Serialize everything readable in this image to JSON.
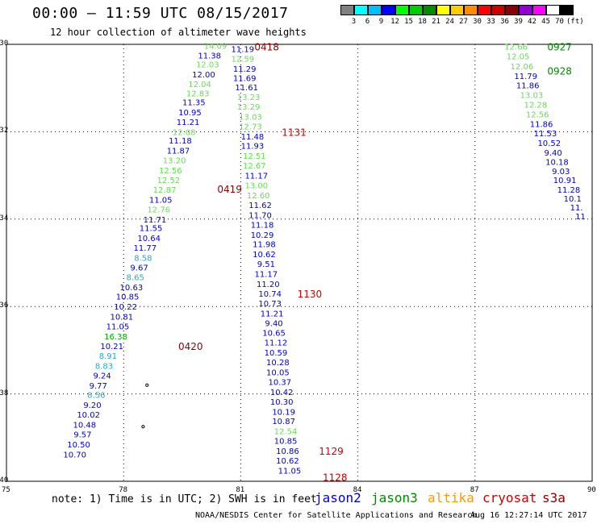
{
  "header": {
    "title": "00:00 – 11:59 UTC 08/15/2017",
    "subtitle": "12 hour collection of altimeter wave heights"
  },
  "legend": {
    "colors": [
      "#808080",
      "#00ffff",
      "#00bfff",
      "#0000ff",
      "#00ff00",
      "#00cd00",
      "#008b00",
      "#ffff00",
      "#ffcc00",
      "#ff8c00",
      "#ff0000",
      "#cd0000",
      "#8b0000",
      "#9400d3",
      "#ff00ff",
      "#ffffff",
      "#000000"
    ],
    "labels": [
      "3",
      "6",
      "9",
      "12",
      "15",
      "18",
      "21",
      "24",
      "27",
      "30",
      "33",
      "36",
      "39",
      "42",
      "45",
      "70",
      "(ft)"
    ]
  },
  "axes": {
    "y_ticks": [
      "-30",
      "-32",
      "-34",
      "-36",
      "-38",
      "-40"
    ],
    "x_ticks": [
      "75",
      "78",
      "81",
      "84",
      "87",
      "90"
    ]
  },
  "note": "note: 1) Time is in UTC; 2) SWH is in feet",
  "satellites": [
    {
      "name": "jason2",
      "color": "#0000cc"
    },
    {
      "name": "jason3",
      "color": "#008b00"
    },
    {
      "name": "altika",
      "color": "#ff9900"
    },
    {
      "name": "cryosat",
      "color": "#cc0000"
    },
    {
      "name": "s3a",
      "color": "#8b0000"
    }
  ],
  "credit": "NOAA/NESDIS Center for Satellite Applications and Research",
  "stamp": "Aug 16 12:27:14 UTC 2017",
  "chart_data": {
    "type": "scatter",
    "xlim": [
      75,
      90
    ],
    "ylim": [
      -40,
      -30
    ],
    "grid": true,
    "time_labels": [
      {
        "text": "0418",
        "lon": 81.35,
        "lat": -30.05,
        "color": "#8b0000"
      },
      {
        "text": "0419",
        "lon": 80.4,
        "lat": -33.3,
        "color": "#8b0000"
      },
      {
        "text": "0420",
        "lon": 79.4,
        "lat": -36.9,
        "color": "#8b0000"
      },
      {
        "text": "1131",
        "lon": 82.05,
        "lat": -32.0,
        "color": "#cc0000"
      },
      {
        "text": "1130",
        "lon": 82.45,
        "lat": -35.7,
        "color": "#cc0000"
      },
      {
        "text": "1129",
        "lon": 83.0,
        "lat": -39.3,
        "color": "#cc0000"
      },
      {
        "text": "1128",
        "lon": 83.1,
        "lat": -39.9,
        "color": "#cc0000"
      },
      {
        "text": "0927",
        "lon": 88.85,
        "lat": -30.05,
        "color": "#008b00"
      },
      {
        "text": "0928",
        "lon": 88.85,
        "lat": -30.6,
        "color": "#008b00"
      }
    ],
    "tracks": [
      {
        "name": "s3a-pass",
        "points": [
          {
            "lon": 80.35,
            "lat": -30.03,
            "v": "14.09",
            "c": "#66dd55"
          },
          {
            "lon": 80.2,
            "lat": -30.25,
            "v": "11.38",
            "c": "#0000cc"
          },
          {
            "lon": 80.15,
            "lat": -30.45,
            "v": "12.03",
            "c": "#66dd55"
          },
          {
            "lon": 80.05,
            "lat": -30.68,
            "v": "12.00",
            "c": "#0000cc"
          },
          {
            "lon": 79.95,
            "lat": -30.9,
            "v": "12.04",
            "c": "#66dd55"
          },
          {
            "lon": 79.9,
            "lat": -31.12,
            "v": "12.83",
            "c": "#66dd55"
          },
          {
            "lon": 79.8,
            "lat": -31.32,
            "v": "11.35",
            "c": "#0000cc"
          },
          {
            "lon": 79.7,
            "lat": -31.55,
            "v": "10.95",
            "c": "#0000cc"
          },
          {
            "lon": 79.65,
            "lat": -31.77,
            "v": "11.21",
            "c": "#0000cc"
          },
          {
            "lon": 79.55,
            "lat": -32.0,
            "v": "12.08",
            "c": "#66dd55"
          },
          {
            "lon": 79.45,
            "lat": -32.2,
            "v": "11.18",
            "c": "#0000cc"
          },
          {
            "lon": 79.4,
            "lat": -32.43,
            "v": "11.87",
            "c": "#0000cc"
          },
          {
            "lon": 79.3,
            "lat": -32.65,
            "v": "13.20",
            "c": "#66dd55"
          },
          {
            "lon": 79.2,
            "lat": -32.88,
            "v": "12.56",
            "c": "#66dd55"
          },
          {
            "lon": 79.15,
            "lat": -33.1,
            "v": "12.52",
            "c": "#66dd55"
          },
          {
            "lon": 79.05,
            "lat": -33.32,
            "v": "12.87",
            "c": "#66dd55"
          },
          {
            "lon": 78.95,
            "lat": -33.55,
            "v": "11.05",
            "c": "#0000cc"
          },
          {
            "lon": 78.9,
            "lat": -33.77,
            "v": "12.76",
            "c": "#66dd55"
          },
          {
            "lon": 78.8,
            "lat": -34.0,
            "v": "11.71",
            "c": "#0000cc"
          },
          {
            "lon": 78.7,
            "lat": -34.2,
            "v": "11.55",
            "c": "#0000cc"
          },
          {
            "lon": 78.65,
            "lat": -34.43,
            "v": "10.64",
            "c": "#0000cc"
          },
          {
            "lon": 78.55,
            "lat": -34.65,
            "v": "11.77",
            "c": "#0000cc"
          },
          {
            "lon": 78.5,
            "lat": -34.88,
            "v": "8.58",
            "c": "#22aacc"
          },
          {
            "lon": 78.4,
            "lat": -35.1,
            "v": "9.67",
            "c": "#0000cc"
          },
          {
            "lon": 78.3,
            "lat": -35.32,
            "v": "8.65",
            "c": "#22aacc"
          },
          {
            "lon": 78.2,
            "lat": -35.55,
            "v": "10.63",
            "c": "#0000cc"
          },
          {
            "lon": 78.1,
            "lat": -35.77,
            "v": "10.85",
            "c": "#0000cc"
          },
          {
            "lon": 78.05,
            "lat": -36.0,
            "v": "10.22",
            "c": "#0000cc"
          },
          {
            "lon": 77.95,
            "lat": -36.23,
            "v": "10.81",
            "c": "#0000cc"
          },
          {
            "lon": 77.85,
            "lat": -36.45,
            "v": "11.05",
            "c": "#0000cc"
          },
          {
            "lon": 77.8,
            "lat": -36.68,
            "v": "16.38",
            "c": "#00aa00"
          },
          {
            "lon": 77.7,
            "lat": -36.9,
            "v": "10.21",
            "c": "#0000cc"
          },
          {
            "lon": 77.6,
            "lat": -37.12,
            "v": "8.91",
            "c": "#22aacc"
          },
          {
            "lon": 77.5,
            "lat": -37.35,
            "v": "8.83",
            "c": "#22aacc"
          },
          {
            "lon": 77.45,
            "lat": -37.57,
            "v": "9.24",
            "c": "#0000cc"
          },
          {
            "lon": 77.35,
            "lat": -37.8,
            "v": "9.77",
            "c": "#0000cc"
          },
          {
            "lon": 77.3,
            "lat": -38.02,
            "v": "8.56",
            "c": "#22aacc"
          },
          {
            "lon": 77.2,
            "lat": -38.25,
            "v": "9.20",
            "c": "#0000cc"
          },
          {
            "lon": 77.1,
            "lat": -38.47,
            "v": "10.02",
            "c": "#0000cc"
          },
          {
            "lon": 77.0,
            "lat": -38.7,
            "v": "10.48",
            "c": "#0000cc"
          },
          {
            "lon": 76.95,
            "lat": -38.92,
            "v": "9.57",
            "c": "#0000cc"
          },
          {
            "lon": 76.85,
            "lat": -39.15,
            "v": "10.50",
            "c": "#0000cc"
          },
          {
            "lon": 76.75,
            "lat": -39.38,
            "v": "10.70",
            "c": "#0000cc"
          }
        ]
      },
      {
        "name": "cryosat-pass",
        "points": [
          {
            "lon": 81.05,
            "lat": -30.1,
            "v": "11.19",
            "c": "#0000cc"
          },
          {
            "lon": 81.05,
            "lat": -30.32,
            "v": "12.59",
            "c": "#66dd55"
          },
          {
            "lon": 81.1,
            "lat": -30.55,
            "v": "11.29",
            "c": "#0000cc"
          },
          {
            "lon": 81.1,
            "lat": -30.77,
            "v": "11.69",
            "c": "#0000cc"
          },
          {
            "lon": 81.15,
            "lat": -30.98,
            "v": "11.61",
            "c": "#0000cc"
          },
          {
            "lon": 81.2,
            "lat": -31.2,
            "v": "13.23",
            "c": "#66dd55"
          },
          {
            "lon": 81.2,
            "lat": -31.42,
            "v": "13.29",
            "c": "#66dd55"
          },
          {
            "lon": 81.25,
            "lat": -31.65,
            "v": "13.03",
            "c": "#66dd55"
          },
          {
            "lon": 81.25,
            "lat": -31.87,
            "v": "12.73",
            "c": "#66dd55"
          },
          {
            "lon": 81.3,
            "lat": -32.1,
            "v": "11.48",
            "c": "#0000cc"
          },
          {
            "lon": 81.3,
            "lat": -32.32,
            "v": "11.93",
            "c": "#0000cc"
          },
          {
            "lon": 81.35,
            "lat": -32.55,
            "v": "12.51",
            "c": "#66dd55"
          },
          {
            "lon": 81.35,
            "lat": -32.77,
            "v": "12.67",
            "c": "#66dd55"
          },
          {
            "lon": 81.4,
            "lat": -33.0,
            "v": "11.17",
            "c": "#0000cc"
          },
          {
            "lon": 81.4,
            "lat": -33.22,
            "v": "13.00",
            "c": "#66dd55"
          },
          {
            "lon": 81.45,
            "lat": -33.45,
            "v": "12.60",
            "c": "#66dd55"
          },
          {
            "lon": 81.5,
            "lat": -33.67,
            "v": "11.62",
            "c": "#0000cc"
          },
          {
            "lon": 81.5,
            "lat": -33.9,
            "v": "11.70",
            "c": "#0000cc"
          },
          {
            "lon": 81.55,
            "lat": -34.12,
            "v": "11.18",
            "c": "#0000cc"
          },
          {
            "lon": 81.55,
            "lat": -34.35,
            "v": "10.29",
            "c": "#0000cc"
          },
          {
            "lon": 81.6,
            "lat": -34.57,
            "v": "11.98",
            "c": "#0000cc"
          },
          {
            "lon": 81.6,
            "lat": -34.8,
            "v": "10.62",
            "c": "#0000cc"
          },
          {
            "lon": 81.65,
            "lat": -35.02,
            "v": "9.51",
            "c": "#0000cc"
          },
          {
            "lon": 81.65,
            "lat": -35.25,
            "v": "11.17",
            "c": "#0000cc"
          },
          {
            "lon": 81.7,
            "lat": -35.48,
            "v": "11.20",
            "c": "#0000cc"
          },
          {
            "lon": 81.75,
            "lat": -35.7,
            "v": "10.74",
            "c": "#0000cc"
          },
          {
            "lon": 81.75,
            "lat": -35.92,
            "v": "10.73",
            "c": "#0000cc"
          },
          {
            "lon": 81.8,
            "lat": -36.15,
            "v": "11.21",
            "c": "#0000cc"
          },
          {
            "lon": 81.85,
            "lat": -36.37,
            "v": "9.40",
            "c": "#0000cc"
          },
          {
            "lon": 81.85,
            "lat": -36.6,
            "v": "10.65",
            "c": "#0000cc"
          },
          {
            "lon": 81.9,
            "lat": -36.82,
            "v": "11.12",
            "c": "#0000cc"
          },
          {
            "lon": 81.9,
            "lat": -37.05,
            "v": "10.59",
            "c": "#0000cc"
          },
          {
            "lon": 81.95,
            "lat": -37.27,
            "v": "10.28",
            "c": "#0000cc"
          },
          {
            "lon": 81.95,
            "lat": -37.5,
            "v": "10.05",
            "c": "#0000cc"
          },
          {
            "lon": 82.0,
            "lat": -37.72,
            "v": "10.37",
            "c": "#0000cc"
          },
          {
            "lon": 82.05,
            "lat": -37.95,
            "v": "10.42",
            "c": "#0000cc"
          },
          {
            "lon": 82.05,
            "lat": -38.17,
            "v": "10.30",
            "c": "#0000cc"
          },
          {
            "lon": 82.1,
            "lat": -38.4,
            "v": "10.19",
            "c": "#0000cc"
          },
          {
            "lon": 82.1,
            "lat": -38.62,
            "v": "10.87",
            "c": "#0000cc"
          },
          {
            "lon": 82.15,
            "lat": -38.85,
            "v": "12.54",
            "c": "#66dd55"
          },
          {
            "lon": 82.15,
            "lat": -39.07,
            "v": "10.85",
            "c": "#0000cc"
          },
          {
            "lon": 82.2,
            "lat": -39.3,
            "v": "10.86",
            "c": "#0000cc"
          },
          {
            "lon": 82.2,
            "lat": -39.52,
            "v": "10.62",
            "c": "#0000cc"
          },
          {
            "lon": 82.25,
            "lat": -39.75,
            "v": "11.05",
            "c": "#0000cc"
          }
        ]
      },
      {
        "name": "jason3-pass",
        "points": [
          {
            "lon": 88.05,
            "lat": -30.05,
            "v": "12.66",
            "c": "#66dd55"
          },
          {
            "lon": 88.1,
            "lat": -30.27,
            "v": "12.05",
            "c": "#66dd55"
          },
          {
            "lon": 88.2,
            "lat": -30.5,
            "v": "12.06",
            "c": "#66dd55"
          },
          {
            "lon": 88.3,
            "lat": -30.72,
            "v": "11.79",
            "c": "#0000cc"
          },
          {
            "lon": 88.35,
            "lat": -30.93,
            "v": "11.86",
            "c": "#0000cc"
          },
          {
            "lon": 88.45,
            "lat": -31.15,
            "v": "13.03",
            "c": "#66dd55"
          },
          {
            "lon": 88.55,
            "lat": -31.37,
            "v": "12.28",
            "c": "#66dd55"
          },
          {
            "lon": 88.6,
            "lat": -31.6,
            "v": "12.56",
            "c": "#66dd55"
          },
          {
            "lon": 88.7,
            "lat": -31.82,
            "v": "11.86",
            "c": "#0000cc"
          },
          {
            "lon": 88.8,
            "lat": -32.03,
            "v": "11.53",
            "c": "#0000cc"
          },
          {
            "lon": 88.9,
            "lat": -32.25,
            "v": "10.52",
            "c": "#0000cc"
          },
          {
            "lon": 89.0,
            "lat": -32.47,
            "v": "9.40",
            "c": "#0000cc"
          },
          {
            "lon": 89.1,
            "lat": -32.68,
            "v": "10.18",
            "c": "#0000cc"
          },
          {
            "lon": 89.2,
            "lat": -32.9,
            "v": "9.03",
            "c": "#0000cc"
          },
          {
            "lon": 89.3,
            "lat": -33.1,
            "v": "10.91",
            "c": "#0000cc"
          },
          {
            "lon": 89.4,
            "lat": -33.32,
            "v": "11.28",
            "c": "#0000cc"
          },
          {
            "lon": 89.5,
            "lat": -33.52,
            "v": "10.1",
            "c": "#0000cc"
          },
          {
            "lon": 89.6,
            "lat": -33.73,
            "v": "11.",
            "c": "#0000cc"
          },
          {
            "lon": 89.7,
            "lat": -33.93,
            "v": "11",
            "c": "#0000cc"
          }
        ]
      }
    ]
  }
}
